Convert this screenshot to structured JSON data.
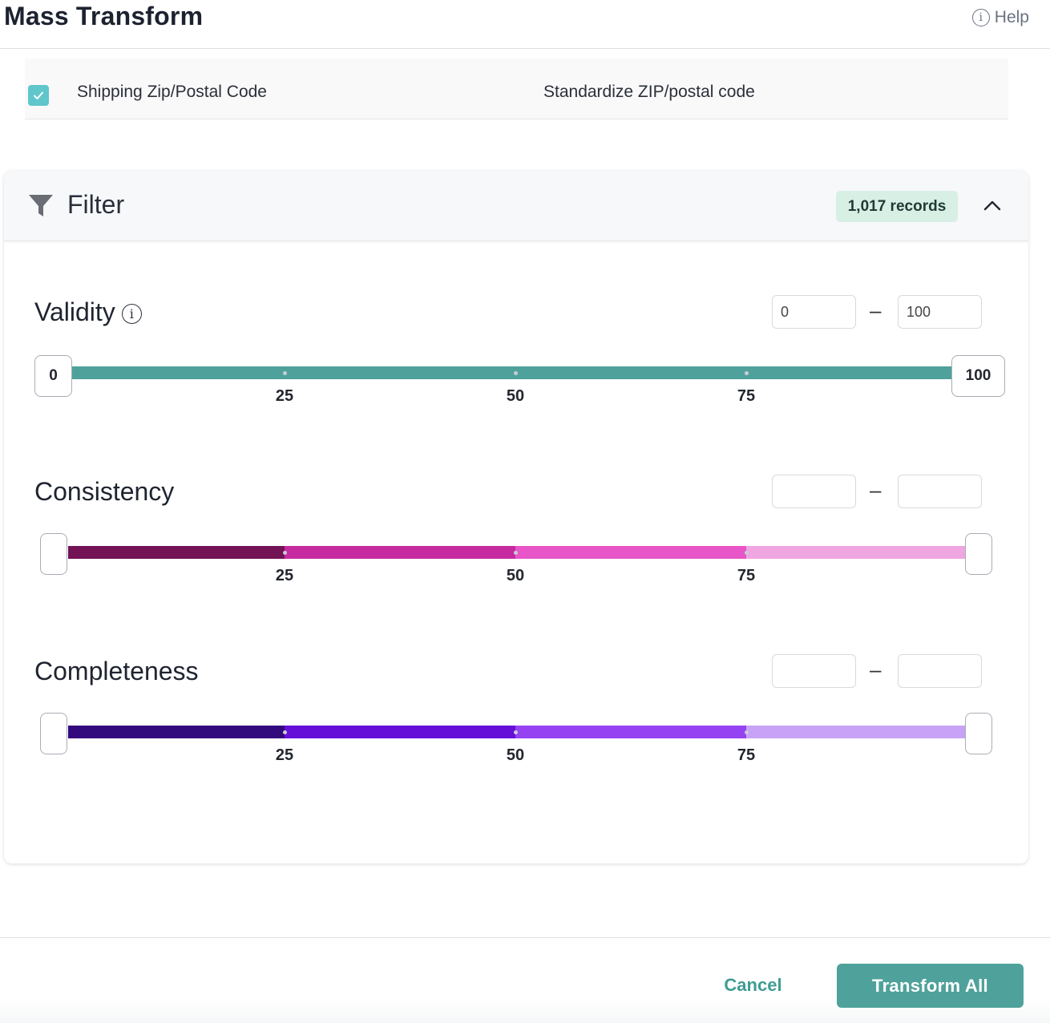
{
  "header": {
    "title": "Mass Transform",
    "help_label": "Help"
  },
  "field_row": {
    "checked": true,
    "field_name": "Shipping Zip/Postal Code",
    "action": "Standardize ZIP/postal code"
  },
  "filter": {
    "title": "Filter",
    "records_badge": "1,017 records",
    "metrics": [
      {
        "label": "Validity",
        "has_info_icon": true,
        "min_value": "0",
        "max_value": "100",
        "handle_min_label": "0",
        "handle_max_label": "100",
        "ticks": [
          "25",
          "50",
          "75"
        ],
        "colors": [
          "#4fa29b",
          "#4fa29b",
          "#4fa29b",
          "#4fa29b"
        ]
      },
      {
        "label": "Consistency",
        "has_info_icon": false,
        "min_value": "",
        "max_value": "",
        "handle_min_label": "",
        "handle_max_label": "",
        "ticks": [
          "25",
          "50",
          "75"
        ],
        "colors": [
          "#731255",
          "#c72aa0",
          "#e855c8",
          "#f0a6e0"
        ]
      },
      {
        "label": "Completeness",
        "has_info_icon": false,
        "min_value": "",
        "max_value": "",
        "handle_min_label": "",
        "handle_max_label": "",
        "ticks": [
          "25",
          "50",
          "75"
        ],
        "colors": [
          "#33097e",
          "#650fd9",
          "#9542f3",
          "#c8a2f7"
        ]
      }
    ]
  },
  "footer": {
    "cancel_label": "Cancel",
    "transform_label": "Transform All"
  }
}
